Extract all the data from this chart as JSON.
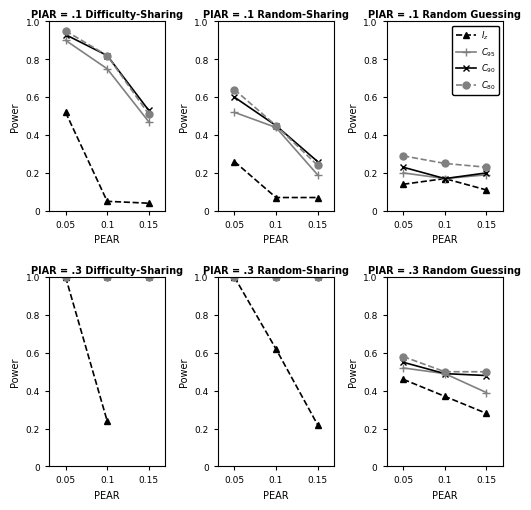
{
  "x": [
    0.05,
    0.1,
    0.15
  ],
  "panels": [
    {
      "title": "PIAR = .1 Difficulty-Sharing",
      "row": 0,
      "col": 0,
      "series": [
        {
          "label": "$I_z$",
          "marker": "^",
          "linestyle": "--",
          "color": "black",
          "values": [
            0.52,
            0.05,
            0.04
          ]
        },
        {
          "label": "$C_{95}$",
          "marker": "+",
          "linestyle": "-",
          "color": "gray",
          "values": [
            0.9,
            0.75,
            0.47
          ]
        },
        {
          "label": "$C_{90}$",
          "marker": "x",
          "linestyle": "-",
          "color": "black",
          "values": [
            0.93,
            0.82,
            0.53
          ]
        },
        {
          "label": "$C_{80}$",
          "marker": "o",
          "linestyle": "--",
          "color": "gray",
          "values": [
            0.95,
            0.82,
            0.51
          ]
        }
      ]
    },
    {
      "title": "PIAR = .1 Random-Sharing",
      "row": 0,
      "col": 1,
      "series": [
        {
          "label": "$I_z$",
          "marker": "^",
          "linestyle": "--",
          "color": "black",
          "values": [
            0.26,
            0.07,
            0.07
          ]
        },
        {
          "label": "$C_{95}$",
          "marker": "+",
          "linestyle": "-",
          "color": "gray",
          "values": [
            0.52,
            0.44,
            0.19
          ]
        },
        {
          "label": "$C_{90}$",
          "marker": "x",
          "linestyle": "-",
          "color": "black",
          "values": [
            0.6,
            0.45,
            0.26
          ]
        },
        {
          "label": "$C_{80}$",
          "marker": "o",
          "linestyle": "--",
          "color": "gray",
          "values": [
            0.64,
            0.45,
            0.24
          ]
        }
      ]
    },
    {
      "title": "PIAR = .1 Random Guessing",
      "row": 0,
      "col": 2,
      "series": [
        {
          "label": "$I_z$",
          "marker": "^",
          "linestyle": "--",
          "color": "black",
          "values": [
            0.14,
            0.17,
            0.11
          ]
        },
        {
          "label": "$C_{95}$",
          "marker": "+",
          "linestyle": "-",
          "color": "gray",
          "values": [
            0.2,
            0.17,
            0.19
          ]
        },
        {
          "label": "$C_{90}$",
          "marker": "x",
          "linestyle": "-",
          "color": "black",
          "values": [
            0.23,
            0.17,
            0.2
          ]
        },
        {
          "label": "$C_{80}$",
          "marker": "o",
          "linestyle": "--",
          "color": "gray",
          "values": [
            0.29,
            0.25,
            0.23
          ]
        }
      ]
    },
    {
      "title": "PIAR = .3 Difficulty-Sharing",
      "row": 1,
      "col": 0,
      "series": [
        {
          "label": "$I_z$",
          "marker": "^",
          "linestyle": "--",
          "color": "black",
          "values": [
            1.0,
            0.24,
            null
          ]
        },
        {
          "label": "$C_{95}$",
          "marker": "+",
          "linestyle": "-",
          "color": "gray",
          "values": [
            1.0,
            1.0,
            1.0
          ]
        },
        {
          "label": "$C_{90}$",
          "marker": "x",
          "linestyle": "-",
          "color": "black",
          "values": [
            1.0,
            1.0,
            1.0
          ]
        },
        {
          "label": "$C_{80}$",
          "marker": "o",
          "linestyle": "--",
          "color": "gray",
          "values": [
            1.0,
            1.0,
            1.0
          ]
        }
      ]
    },
    {
      "title": "PIAR = .3 Random-Sharing",
      "row": 1,
      "col": 1,
      "series": [
        {
          "label": "$I_z$",
          "marker": "^",
          "linestyle": "--",
          "color": "black",
          "values": [
            1.0,
            0.62,
            0.22
          ]
        },
        {
          "label": "$C_{95}$",
          "marker": "+",
          "linestyle": "-",
          "color": "gray",
          "values": [
            1.0,
            1.0,
            1.0
          ]
        },
        {
          "label": "$C_{90}$",
          "marker": "x",
          "linestyle": "-",
          "color": "black",
          "values": [
            1.0,
            1.0,
            1.0
          ]
        },
        {
          "label": "$C_{80}$",
          "marker": "o",
          "linestyle": "--",
          "color": "gray",
          "values": [
            1.0,
            1.0,
            1.0
          ]
        }
      ]
    },
    {
      "title": "PIAR = .3 Random Guessing",
      "row": 1,
      "col": 2,
      "series": [
        {
          "label": "$I_z$",
          "marker": "^",
          "linestyle": "--",
          "color": "black",
          "values": [
            0.46,
            0.37,
            0.28
          ]
        },
        {
          "label": "$C_{95}$",
          "marker": "+",
          "linestyle": "-",
          "color": "gray",
          "values": [
            0.52,
            0.49,
            0.39
          ]
        },
        {
          "label": "$C_{90}$",
          "marker": "x",
          "linestyle": "-",
          "color": "black",
          "values": [
            0.55,
            0.49,
            0.48
          ]
        },
        {
          "label": "$C_{80}$",
          "marker": "o",
          "linestyle": "--",
          "color": "gray",
          "values": [
            0.58,
            0.5,
            0.5
          ]
        }
      ]
    }
  ],
  "xlabel": "PEAR",
  "ylabel": "Power",
  "xlim": [
    0.03,
    0.17
  ],
  "xticks": [
    0.05,
    0.1,
    0.15
  ],
  "xticklabels": [
    "0.05",
    "0.1",
    "0.15"
  ],
  "ylim": [
    0,
    1
  ],
  "yticks": [
    0,
    0.2,
    0.4,
    0.6,
    0.8,
    1.0
  ]
}
